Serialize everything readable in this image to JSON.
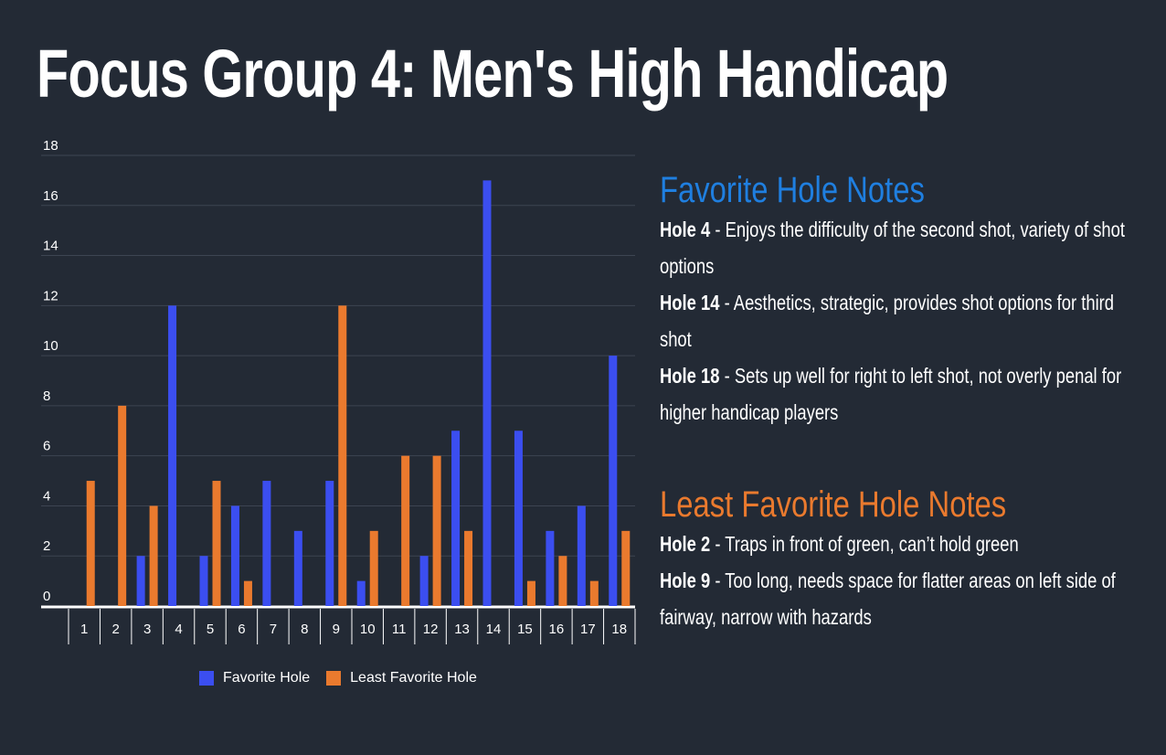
{
  "title": "Focus Group 4: Men's High Handicap",
  "colors": {
    "favorite": "#3b4ef0",
    "least": "#ea7a2e",
    "background": "#232a35",
    "fav_heading": "#1f7fe0",
    "least_heading": "#ea7a2e"
  },
  "chart_data": {
    "type": "bar",
    "categories": [
      "1",
      "2",
      "3",
      "4",
      "5",
      "6",
      "7",
      "8",
      "9",
      "10",
      "11",
      "12",
      "13",
      "14",
      "15",
      "16",
      "17",
      "18"
    ],
    "series": [
      {
        "name": "Favorite Hole",
        "values": [
          0,
          0,
          2,
          12,
          2,
          4,
          5,
          3,
          5,
          1,
          0,
          2,
          7,
          17,
          7,
          3,
          4,
          10
        ]
      },
      {
        "name": "Least Favorite Hole",
        "values": [
          5,
          8,
          4,
          0,
          5,
          1,
          0,
          0,
          12,
          3,
          6,
          6,
          3,
          0,
          1,
          2,
          1,
          3
        ]
      }
    ],
    "y_ticks": [
      "0",
      "2",
      "4",
      "6",
      "8",
      "10",
      "12",
      "14",
      "16",
      "18"
    ],
    "ylim": [
      0,
      18
    ],
    "grid": true,
    "legend": "bottom"
  },
  "favorite_notes": {
    "heading": "Favorite Hole Notes",
    "items": [
      {
        "hole": "Hole 4",
        "text": " - Enjoys the difficulty of the second shot, variety of shot options"
      },
      {
        "hole": "Hole 14",
        "text": " - Aesthetics, strategic, provides shot options for third shot"
      },
      {
        "hole": "Hole 18",
        "text": " - Sets up well for right to left shot, not overly penal for higher handicap players"
      }
    ]
  },
  "least_notes": {
    "heading": "Least Favorite Hole Notes",
    "items": [
      {
        "hole": "Hole 2",
        "text": " - Traps in front of green, can’t hold green"
      },
      {
        "hole": "Hole 9",
        "text": " - Too long, needs space for flatter areas on left side of fairway, narrow with hazards"
      }
    ]
  }
}
